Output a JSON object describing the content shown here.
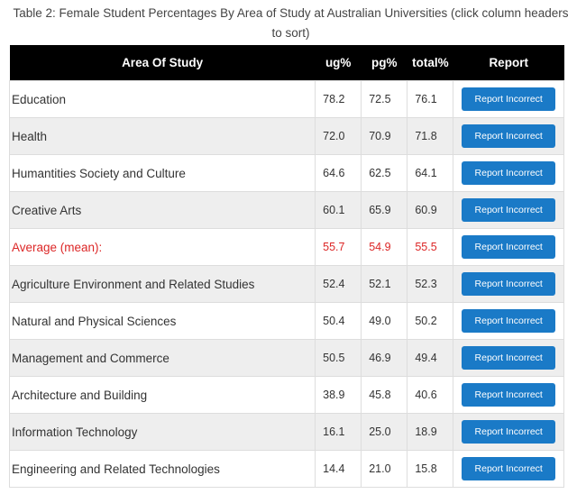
{
  "caption": "Table 2: Female Student Percentages By Area of Study at Australian Universities (click column headers to sort)",
  "columns": {
    "area": "Area Of Study",
    "ug": "ug%",
    "pg": "pg%",
    "total": "total%",
    "report": "Report"
  },
  "report_label": "Report Incorrect",
  "rows": [
    {
      "area": "Education",
      "ug": "78.2",
      "pg": "72.5",
      "total": "76.1"
    },
    {
      "area": "Health",
      "ug": "72.0",
      "pg": "70.9",
      "total": "71.8"
    },
    {
      "area": "Humantities Society and Culture",
      "ug": "64.6",
      "pg": "62.5",
      "total": "64.1"
    },
    {
      "area": "Creative Arts",
      "ug": "60.1",
      "pg": "65.9",
      "total": "60.9"
    },
    {
      "area": "Average (mean):",
      "ug": "55.7",
      "pg": "54.9",
      "total": "55.5",
      "highlight": true
    },
    {
      "area": "Agriculture Environment and Related Studies",
      "ug": "52.4",
      "pg": "52.1",
      "total": "52.3"
    },
    {
      "area": "Natural and Physical Sciences",
      "ug": "50.4",
      "pg": "49.0",
      "total": "50.2"
    },
    {
      "area": "Management and Commerce",
      "ug": "50.5",
      "pg": "46.9",
      "total": "49.4"
    },
    {
      "area": "Architecture and Building",
      "ug": "38.9",
      "pg": "45.8",
      "total": "40.6"
    },
    {
      "area": "Information Technology",
      "ug": "16.1",
      "pg": "25.0",
      "total": "18.9"
    },
    {
      "area": "Engineering and Related Technologies",
      "ug": "14.4",
      "pg": "21.0",
      "total": "15.8"
    }
  ],
  "colors": {
    "header_bg": "#000000",
    "button_bg": "#1a7ac7",
    "highlight_text": "#dc2626",
    "alt_row_bg": "#eeeeee"
  }
}
